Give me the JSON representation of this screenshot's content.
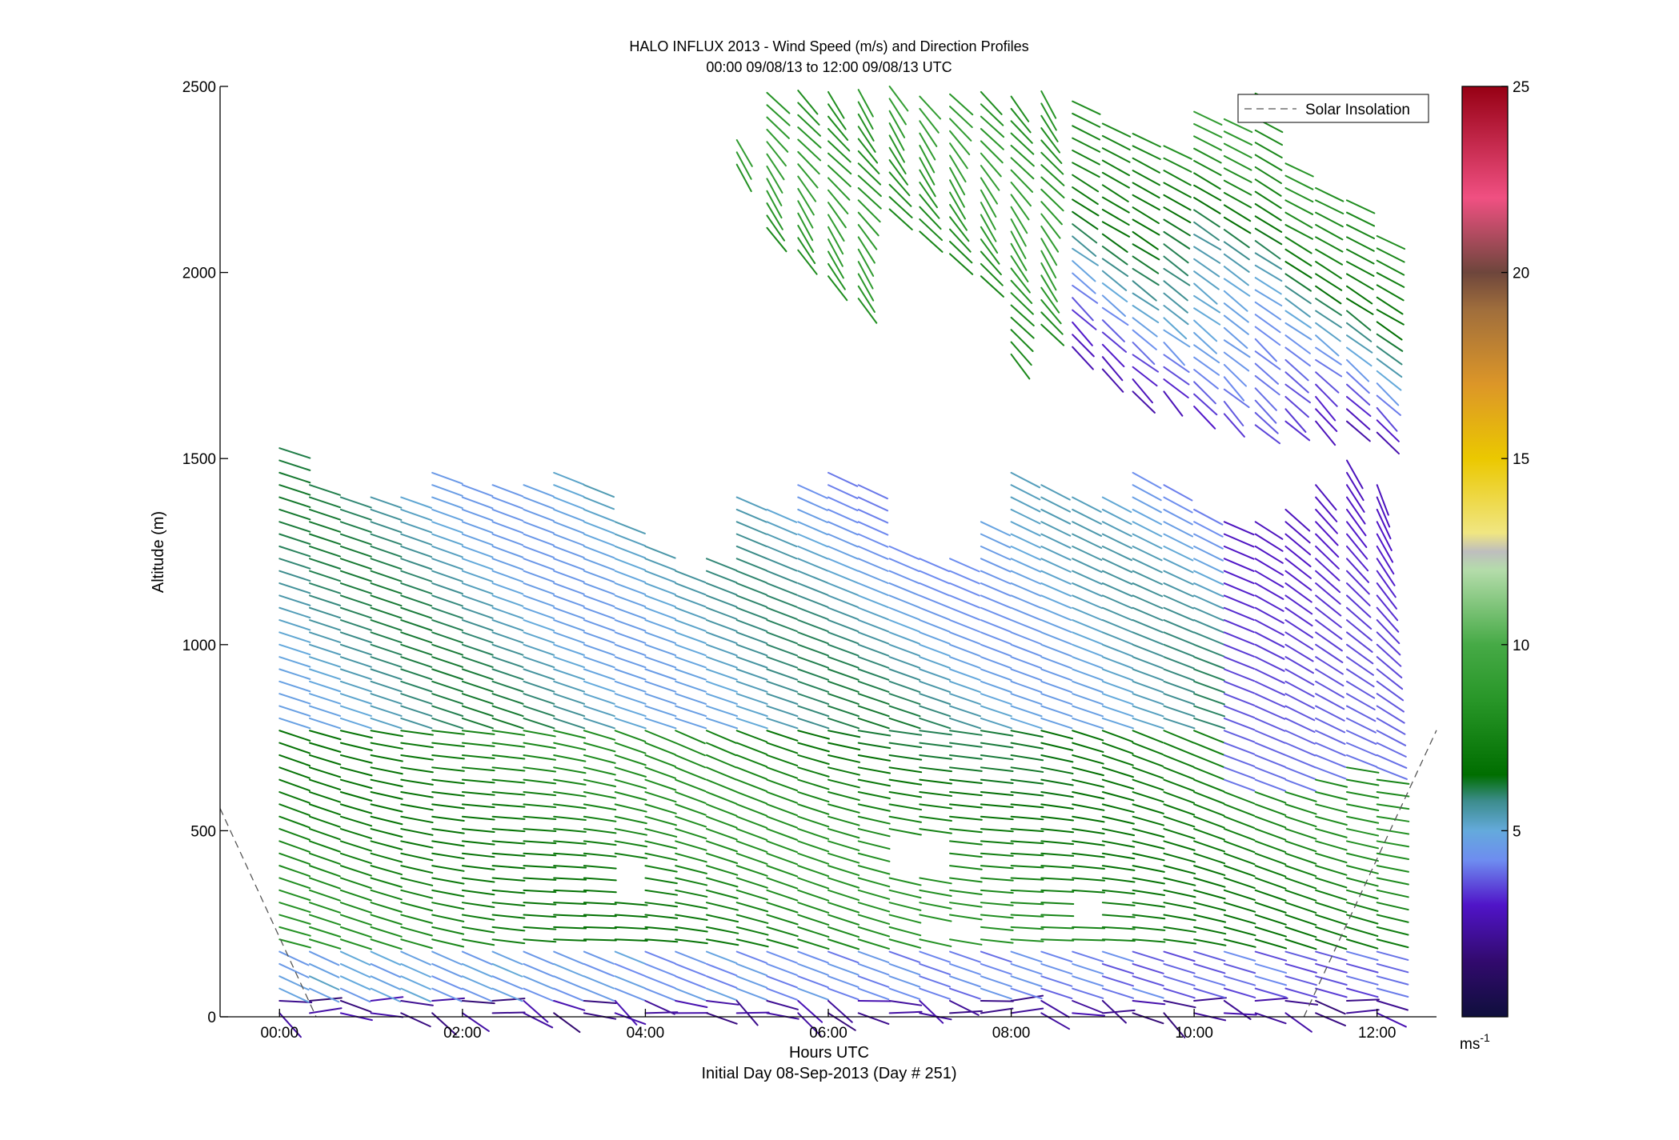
{
  "chart_data": {
    "type": "wind-barb-profile",
    "title": "HALO INFLUX 2013 - Wind Speed (m/s) and Direction Profiles",
    "subtitle": "00:00 09/08/13 to 12:00 09/08/13  UTC",
    "xlabel": "Hours UTC",
    "xlabel2": "Initial Day 08-Sep-2013 (Day # 251)",
    "ylabel": "Altitude (m)",
    "xlim": [
      -0.65,
      12.65
    ],
    "ylim": [
      0,
      2500
    ],
    "x_ticks": [
      0,
      2,
      4,
      6,
      8,
      10,
      12
    ],
    "x_tick_labels": [
      "00:00",
      "02:00",
      "04:00",
      "06:00",
      "08:00",
      "10:00",
      "12:00"
    ],
    "y_ticks": [
      0,
      500,
      1000,
      1500,
      2000,
      2500
    ],
    "y_tick_labels": [
      "0",
      "500",
      "1000",
      "1500",
      "2000",
      "2500"
    ],
    "legend": {
      "label": "Solar Insolation",
      "placement": "top-right",
      "style": "dashed"
    },
    "colorbar": {
      "range": [
        0,
        25
      ],
      "ticks": [
        5,
        10,
        15,
        20,
        25
      ],
      "tick_labels": [
        "5",
        "10",
        "15",
        "20",
        "25"
      ],
      "unit_label": "ms",
      "unit_exponent": "-1"
    },
    "profile_interval_hours": 0.33,
    "gate_spacing_m": 33,
    "profile_times_hours": [
      0.0,
      0.33,
      0.67,
      1.0,
      1.33,
      1.67,
      2.0,
      2.33,
      2.67,
      3.0,
      3.33,
      3.67,
      4.0,
      4.33,
      4.67,
      5.0,
      5.33,
      5.67,
      6.0,
      6.33,
      6.67,
      7.0,
      7.33,
      7.67,
      8.0,
      8.33,
      8.67,
      9.0,
      9.33,
      9.67,
      10.0,
      10.33,
      10.67,
      11.0,
      11.33,
      11.67,
      12.0
    ],
    "lower_layer_top_m": [
      1540,
      1450,
      1400,
      1400,
      1420,
      1470,
      1460,
      1450,
      1460,
      1470,
      1450,
      1330,
      1290,
      1230,
      1260,
      1400,
      1380,
      1450,
      1480,
      1440,
      1290,
      1260,
      1240,
      1330,
      1480,
      1440,
      1420,
      1400,
      1480,
      1450,
      1380,
      1360,
      1360,
      1380,
      1450,
      1500,
      1440
    ],
    "upper_layer_profiles": [
      {
        "t": 5.0,
        "bottom_m": 2290,
        "top_m": 2360
      },
      {
        "t": 5.33,
        "bottom_m": 2120,
        "top_m": 2500
      },
      {
        "t": 5.67,
        "bottom_m": 2060,
        "top_m": 2500
      },
      {
        "t": 6.0,
        "bottom_m": 1990,
        "top_m": 2500
      },
      {
        "t": 6.33,
        "bottom_m": 1930,
        "top_m": 2500
      },
      {
        "t": 6.67,
        "bottom_m": 2170,
        "top_m": 2500
      },
      {
        "t": 7.0,
        "bottom_m": 2110,
        "top_m": 2500
      },
      {
        "t": 7.33,
        "bottom_m": 2050,
        "top_m": 2500
      },
      {
        "t": 7.67,
        "bottom_m": 1990,
        "top_m": 2500
      },
      {
        "t": 8.0,
        "bottom_m": 1780,
        "top_m": 2500
      },
      {
        "t": 8.33,
        "bottom_m": 1860,
        "top_m": 2500
      },
      {
        "t": 8.67,
        "bottom_m": 1800,
        "top_m": 2470
      },
      {
        "t": 9.0,
        "bottom_m": 1740,
        "top_m": 2420
      },
      {
        "t": 9.33,
        "bottom_m": 1680,
        "top_m": 2390
      },
      {
        "t": 9.67,
        "bottom_m": 1680,
        "top_m": 2360
      },
      {
        "t": 10.0,
        "bottom_m": 1640,
        "top_m": 2450
      },
      {
        "t": 10.33,
        "bottom_m": 1620,
        "top_m": 2420
      },
      {
        "t": 10.67,
        "bottom_m": 1590,
        "top_m": 2500
      },
      {
        "t": 11.0,
        "bottom_m": 1600,
        "top_m": 2300
      },
      {
        "t": 11.33,
        "bottom_m": 1600,
        "top_m": 2250
      },
      {
        "t": 11.67,
        "bottom_m": 1600,
        "top_m": 2200
      },
      {
        "t": 12.0,
        "bottom_m": 1570,
        "top_m": 2100
      }
    ],
    "data_gaps": [
      {
        "t_start": 3.5,
        "t_end": 3.9,
        "alt_start_m": 320,
        "alt_end_m": 430
      },
      {
        "t_start": 6.6,
        "t_end": 7.0,
        "alt_start_m": 390,
        "alt_end_m": 500
      },
      {
        "t_start": 7.0,
        "t_end": 7.6,
        "alt_start_m": 230,
        "alt_end_m": 270
      },
      {
        "t_start": 8.4,
        "t_end": 8.9,
        "alt_start_m": 250,
        "alt_end_m": 310
      }
    ],
    "wind_speed_regimes_ms": {
      "near_surface_0_60m": 1.5,
      "surface_layer_60_200m": 4.5,
      "boundary_layer_200_800m": 7.5,
      "upper_boundary_layer_800_1500m": 5.5,
      "upper_layer_2000_2500m": 8.5,
      "upper_layer_base_late": 3.0
    },
    "wind_direction_note": "barbs point east-southeast in the boundary layer, turning to southward-pointing near the layer tops late in the period",
    "solar_insolation_curve": [
      {
        "hours": -0.65,
        "altitude_m": 560
      },
      {
        "hours": 0.4,
        "altitude_m": 0
      },
      {
        "hours": 11.2,
        "altitude_m": 0
      },
      {
        "hours": 12.65,
        "altitude_m": 770
      }
    ]
  }
}
